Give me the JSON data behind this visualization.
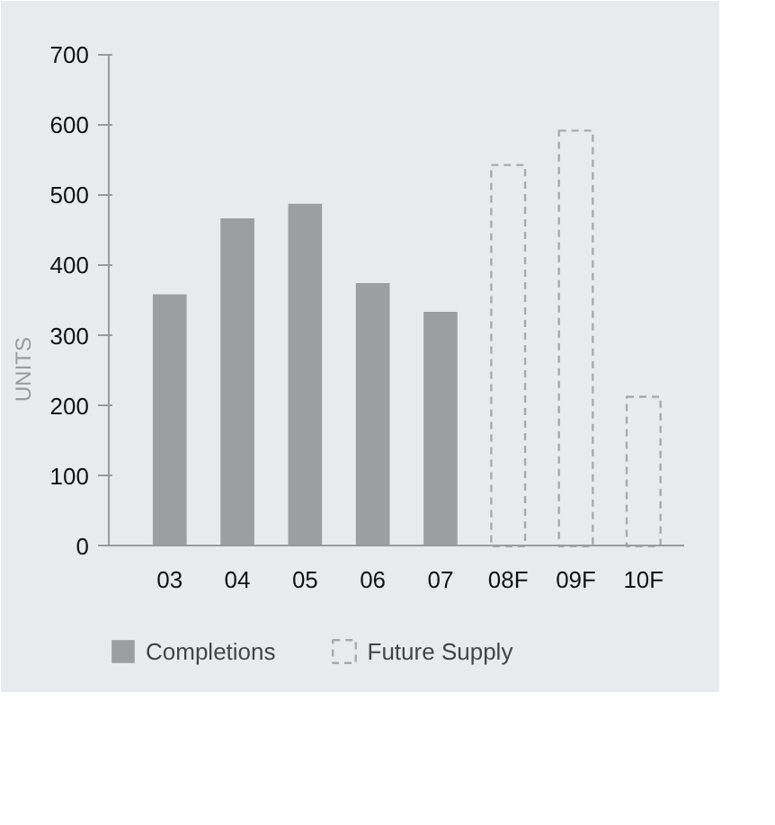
{
  "chart_data": {
    "type": "bar",
    "ylabel": "UNITS",
    "categories": [
      "03",
      "04",
      "05",
      "06",
      "07",
      "08F",
      "09F",
      "10F"
    ],
    "series": [
      {
        "name": "Completions",
        "color": "#9d9ea0",
        "values": [
          359,
          467,
          488,
          375,
          334,
          null,
          null,
          null
        ]
      },
      {
        "name": "Future Supply",
        "color": "#a8a9ab",
        "line_style": "dashed",
        "values": [
          null,
          null,
          null,
          null,
          null,
          543,
          592,
          213
        ]
      }
    ],
    "stacked": true,
    "ylim": [
      0,
      700
    ],
    "yticks": [
      0,
      100,
      200,
      300,
      400,
      500,
      600,
      700
    ],
    "grid": false,
    "legend": "bottom"
  }
}
